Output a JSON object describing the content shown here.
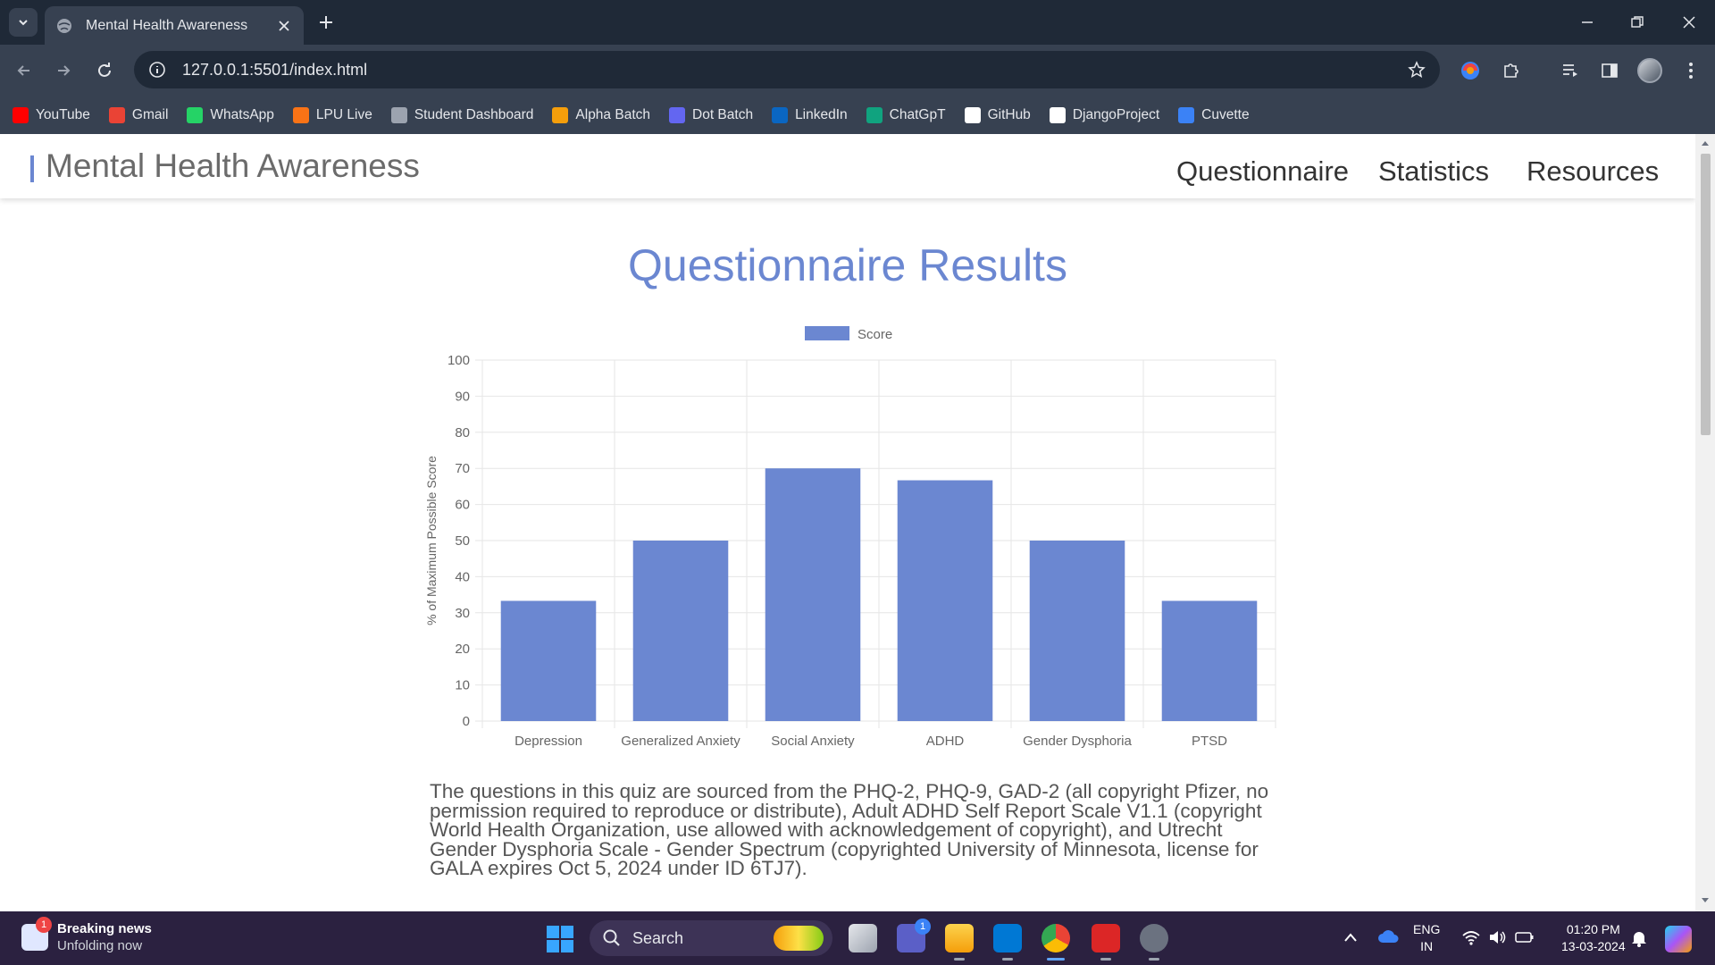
{
  "browser": {
    "tab_title": "Mental Health Awareness",
    "url": "127.0.0.1:5501/index.html",
    "bookmarks": [
      {
        "label": "YouTube",
        "color": "#ff0000"
      },
      {
        "label": "Gmail",
        "color": "#ea4335"
      },
      {
        "label": "WhatsApp",
        "color": "#25d366"
      },
      {
        "label": "LPU Live",
        "color": "#f97316"
      },
      {
        "label": "Student Dashboard",
        "color": "#9ca3af"
      },
      {
        "label": "Alpha Batch",
        "color": "#f59e0b"
      },
      {
        "label": "Dot Batch",
        "color": "#6366f1"
      },
      {
        "label": "LinkedIn",
        "color": "#0a66c2"
      },
      {
        "label": "ChatGpT",
        "color": "#10a37f"
      },
      {
        "label": "GitHub",
        "color": "#ffffff"
      },
      {
        "label": "DjangoProject",
        "color": "#ffffff"
      },
      {
        "label": "Cuvette",
        "color": "#3b82f6"
      }
    ]
  },
  "site": {
    "brand": "Mental Health Awareness",
    "nav": [
      "Questionnaire",
      "Statistics",
      "Resources"
    ]
  },
  "main": {
    "title": "Questionnaire Results",
    "source_note": "The questions in this quiz are sourced from the PHQ-2, PHQ-9, GAD-2 (all copyright Pfizer, no permission required to reproduce or distribute), Adult ADHD Self Report Scale V1.1 (copyright World Health Organization, use allowed with acknowledgement of copyright), and Utrecht Gender Dysphoria Scale - Gender Spectrum (copyrighted University of Minnesota, license for GALA expires Oct 5, 2024 under ID 6TJ7)."
  },
  "chart_data": {
    "type": "bar",
    "categories": [
      "Depression",
      "Generalized Anxiety",
      "Social Anxiety",
      "ADHD",
      "Gender Dysphoria",
      "PTSD"
    ],
    "series": [
      {
        "name": "Score",
        "values": [
          33.3,
          50,
          70,
          66.7,
          50,
          33.3
        ],
        "color": "#6b87d1"
      }
    ],
    "ylabel": "% of Maximum Possible Score",
    "xlabel": "",
    "ylim": [
      0,
      100
    ],
    "yticks": [
      0,
      10,
      20,
      30,
      40,
      50,
      60,
      70,
      80,
      90,
      100
    ],
    "legend": "top-center",
    "grid": true
  },
  "taskbar": {
    "news_title": "Breaking news",
    "news_sub": "Unfolding now",
    "news_badge": "1",
    "search_label": "Search",
    "teams_badge": "1",
    "lang_top": "ENG",
    "lang_bottom": "IN",
    "time": "01:20 PM",
    "date": "13-03-2024"
  }
}
